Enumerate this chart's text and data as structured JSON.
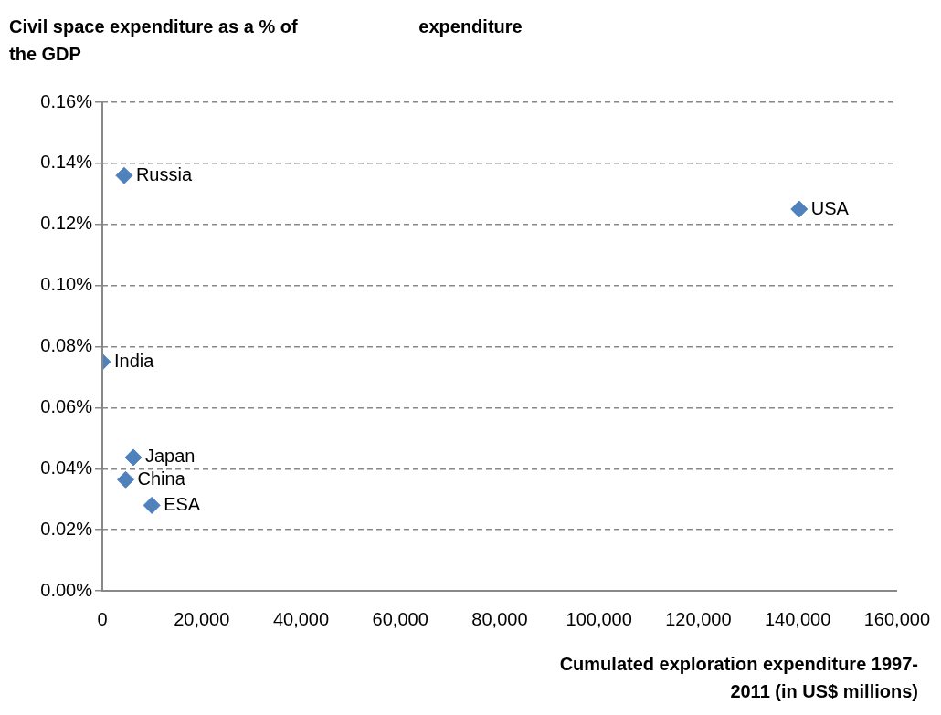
{
  "chart_data": {
    "type": "scatter",
    "title": "expenditure",
    "xlabel": "Cumulated exploration expenditure 1997-2011 (in US$ millions)",
    "ylabel": "Civil space expenditure as a % of the GDP",
    "x": [
      4400,
      140300,
      0,
      6250,
      4700,
      9960
    ],
    "series": [
      {
        "color": "#4f81bd",
        "values": [
          0.136,
          0.125,
          0.075,
          0.0437,
          0.0364,
          0.028
        ]
      }
    ],
    "annotations": [
      {
        "text": "Russia",
        "x": 4400,
        "y": 0.136
      },
      {
        "text": "USA",
        "x": 140300,
        "y": 0.125
      },
      {
        "text": "India",
        "x": 0,
        "y": 0.075
      },
      {
        "text": "Japan",
        "x": 6250,
        "y": 0.0437
      },
      {
        "text": "China",
        "x": 4700,
        "y": 0.0364
      },
      {
        "text": "ESA",
        "x": 9960,
        "y": 0.028
      }
    ],
    "xlim": [
      0,
      160000
    ],
    "xticks": [
      0,
      {
        "value": 20000,
        "label": "20,000"
      },
      {
        "value": 40000,
        "label": "40,000"
      },
      {
        "value": 60000,
        "label": "60,000"
      },
      {
        "value": 80000,
        "label": "80,000"
      },
      {
        "value": 100000,
        "label": "100,000"
      },
      {
        "value": 120000,
        "label": "120,000"
      },
      {
        "value": 140000,
        "label": "140,000"
      },
      {
        "value": 160000,
        "label": "160,000"
      }
    ],
    "ylim": [
      0,
      0.16
    ],
    "yticks": [
      {
        "value": 0,
        "label": "0.00%"
      },
      {
        "value": 0.02,
        "label": "0.02%"
      },
      {
        "value": 0.04,
        "label": "0.04%"
      },
      {
        "value": 0.06,
        "label": "0.06%"
      },
      {
        "value": 0.08,
        "label": "0.08%"
      },
      {
        "value": 0.1,
        "label": "0.10%"
      },
      {
        "value": 0.12,
        "label": "0.12%"
      },
      {
        "value": 0.14,
        "label": "0.14%"
      },
      {
        "value": 0.16,
        "label": "0.16%"
      }
    ],
    "grid": "y",
    "legend": false,
    "marker": "diamond"
  }
}
